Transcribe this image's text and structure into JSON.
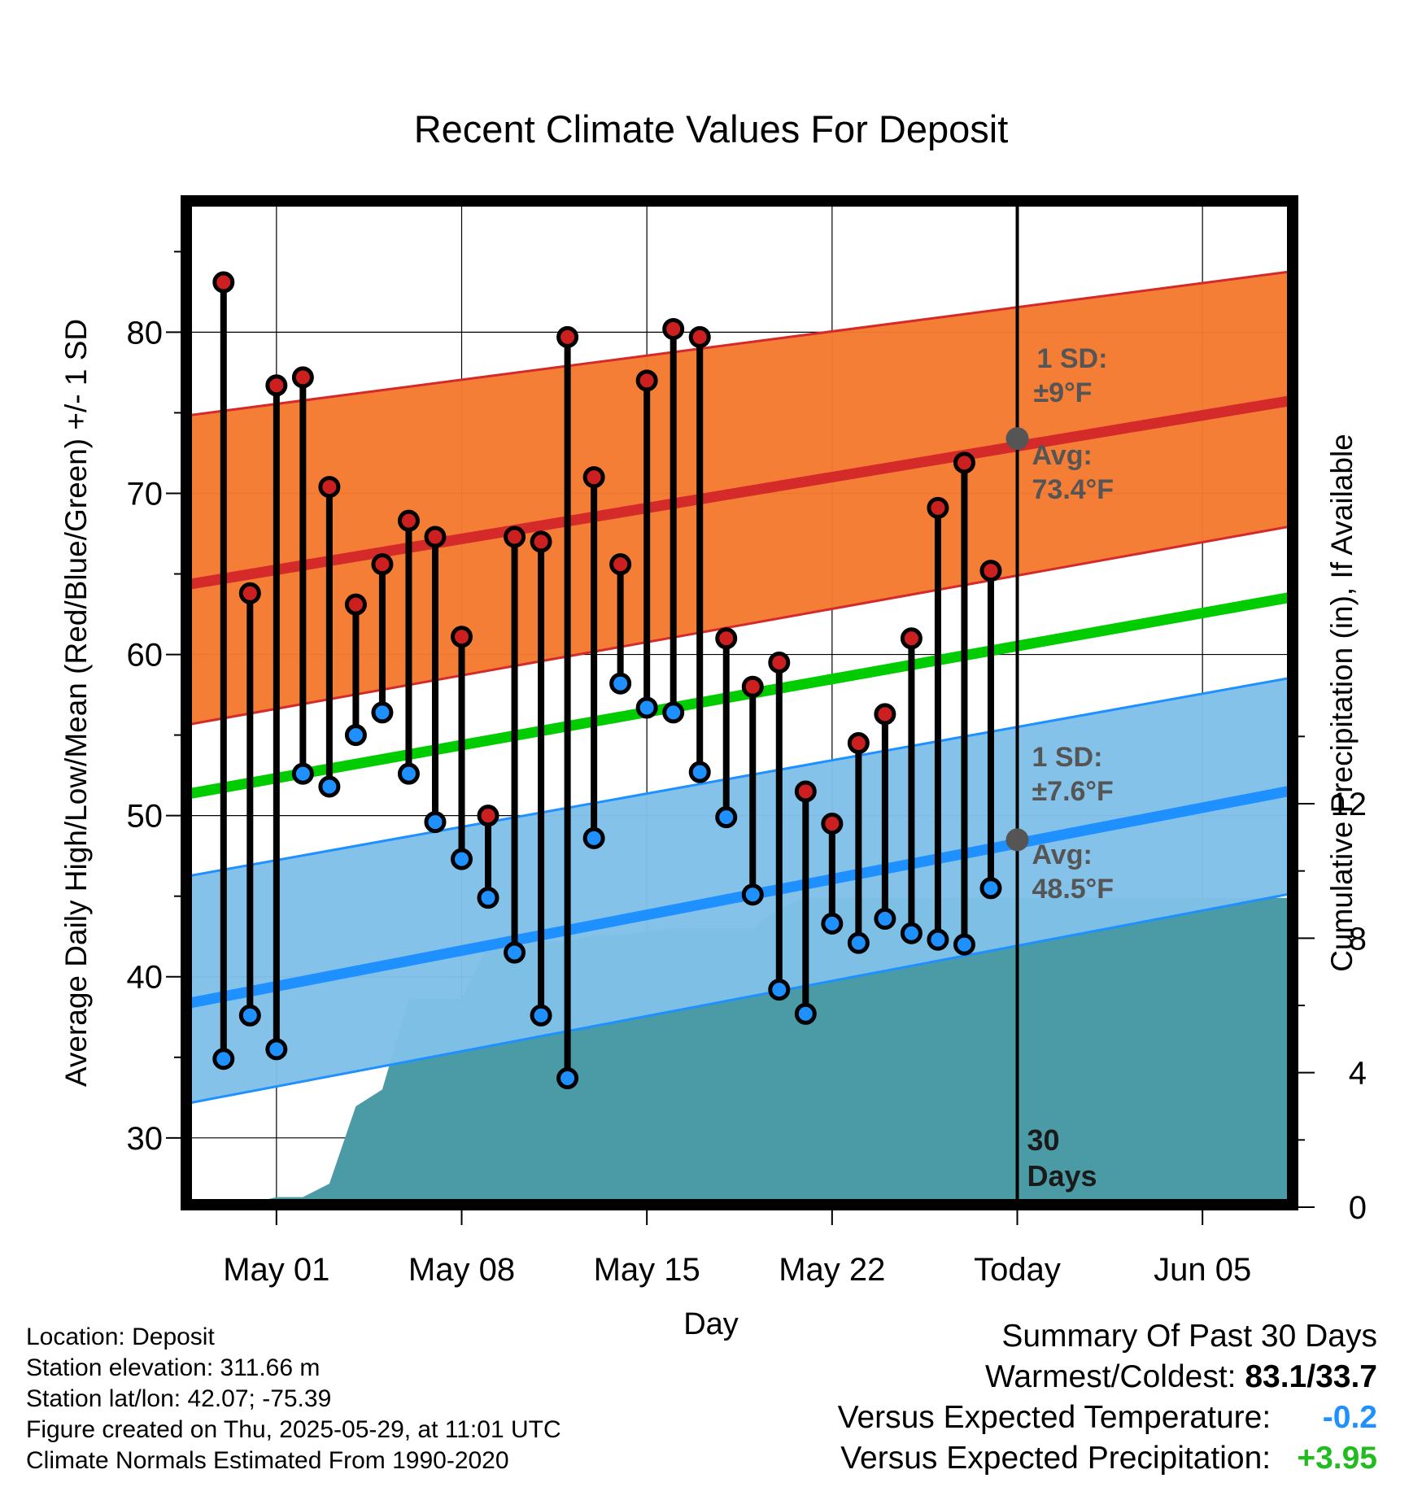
{
  "chart_data": {
    "type": "line",
    "title": "Recent Climate Values For Deposit",
    "xlabel": "Day",
    "ylabel": "Average Daily High/Low/Mean (Red/Blue/Green) +/- 1 SD",
    "ylabel_right": "Cumulative Precipitation (in), If Available",
    "x_range_days": [
      -31.5,
      10.5
    ],
    "ylim": [
      25.7,
      88.3
    ],
    "ylim_right": [
      0,
      30
    ],
    "x_ticks": [
      {
        "day": -28,
        "label": "May 01"
      },
      {
        "day": -21,
        "label": "May 08"
      },
      {
        "day": -14,
        "label": "May 15"
      },
      {
        "day": -7,
        "label": "May 22"
      },
      {
        "day": 0,
        "label": "Today"
      },
      {
        "day": 7,
        "label": "Jun 05"
      }
    ],
    "y_ticks": [
      30,
      40,
      50,
      60,
      70,
      80
    ],
    "y_ticks_right": [
      0,
      4,
      8,
      12
    ],
    "grid": true,
    "colors": {
      "high_band": "#f47a30",
      "high_line": "#d42a2a",
      "low_band": "#80c0e8",
      "low_line": "#1e90ff",
      "mean_line": "#00cc00",
      "precip_area": "#4a9ba6",
      "high_marker": "#cc2020",
      "low_marker": "#1e90ff"
    },
    "normal_high_avg": {
      "x": [
        -31.5,
        10.5
      ],
      "y": [
        64.3,
        75.8
      ]
    },
    "normal_high_sd_band": {
      "x": [
        -31.5,
        10.5
      ],
      "upper": [
        74.8,
        83.8
      ],
      "lower": [
        55.6,
        68.0
      ]
    },
    "normal_mean": {
      "x": [
        -31.5,
        10.5
      ],
      "y": [
        51.3,
        63.6
      ]
    },
    "normal_low_avg": {
      "x": [
        -31.5,
        10.5
      ],
      "y": [
        38.3,
        51.6
      ]
    },
    "normal_low_sd_band": {
      "x": [
        -31.5,
        10.5
      ],
      "upper": [
        46.2,
        58.6
      ],
      "lower": [
        32.1,
        45.2
      ]
    },
    "daily": {
      "day": [
        -30,
        -29,
        -28,
        -27,
        -26,
        -25,
        -24,
        -23,
        -22,
        -21,
        -20,
        -19,
        -18,
        -17,
        -16,
        -15,
        -14,
        -13,
        -12,
        -11,
        -10,
        -9,
        -8,
        -7,
        -6,
        -5,
        -4,
        -3,
        -2,
        -1
      ],
      "high": [
        83.1,
        63.8,
        76.7,
        77.2,
        70.4,
        63.1,
        65.6,
        68.3,
        67.3,
        61.1,
        50.0,
        67.3,
        67.0,
        79.7,
        71.0,
        65.6,
        77.0,
        80.2,
        79.7,
        61.0,
        58.0,
        59.5,
        51.5,
        49.5,
        54.5,
        56.3,
        61.0,
        69.1,
        71.9,
        65.2
      ],
      "low": [
        34.9,
        37.6,
        35.5,
        52.6,
        51.8,
        55.0,
        56.4,
        52.6,
        49.6,
        47.3,
        44.9,
        41.5,
        37.6,
        33.7,
        48.6,
        58.2,
        56.7,
        56.4,
        52.7,
        49.9,
        45.1,
        39.2,
        37.7,
        43.3,
        42.1,
        43.6,
        42.7,
        42.3,
        42.0,
        45.5
      ]
    },
    "precip_cumulative": {
      "day": [
        -31.5,
        -30,
        -29,
        -28,
        -27,
        -26,
        -25,
        -24,
        -23,
        -22,
        -21,
        -20,
        -19,
        -18,
        -17,
        -16,
        -15,
        -14,
        -13,
        -12,
        -11,
        -10,
        -9,
        -8,
        -7,
        -6,
        -5,
        -4,
        -3,
        -2,
        -1,
        0,
        10.5
      ],
      "value": [
        0,
        0.05,
        0.1,
        0.3,
        0.3,
        0.7,
        3.0,
        3.5,
        6.2,
        6.2,
        6.2,
        7.8,
        7.9,
        7.9,
        7.9,
        8.1,
        8.1,
        8.2,
        8.3,
        8.3,
        8.3,
        8.3,
        8.9,
        9.2,
        9.2,
        9.2,
        9.2,
        9.2,
        9.2,
        9.2,
        9.2,
        9.2,
        9.2
      ]
    },
    "annotations": {
      "high_sd_title": "1 SD:",
      "high_sd_value": "±9°F",
      "high_avg_title": "Avg:",
      "high_avg_value": "73.4°F",
      "high_avg": 73.4,
      "low_sd_title": "1 SD:",
      "low_sd_value": "±7.6°F",
      "low_avg_title": "Avg:",
      "low_avg_value": "48.5°F",
      "low_avg": 48.5,
      "period_line1": "30",
      "period_line2": "Days"
    }
  },
  "footer": {
    "location": "Location: Deposit",
    "elevation": "Station elevation: 311.66 m",
    "latlon": "Station lat/lon: 42.07; -75.39",
    "created": "Figure created on Thu, 2025-05-29, at 11:01 UTC",
    "normals": "Climate Normals Estimated From 1990-2020"
  },
  "summary": {
    "title": "Summary Of Past 30 Days",
    "warmest_coldest_label": "Warmest/Coldest:",
    "warmest_coldest_value": "83.1/33.7",
    "temp_label": "Versus Expected Temperature:",
    "temp_value": "-0.2",
    "precip_label": "Versus Expected Precipitation:",
    "precip_value": "+3.95"
  }
}
